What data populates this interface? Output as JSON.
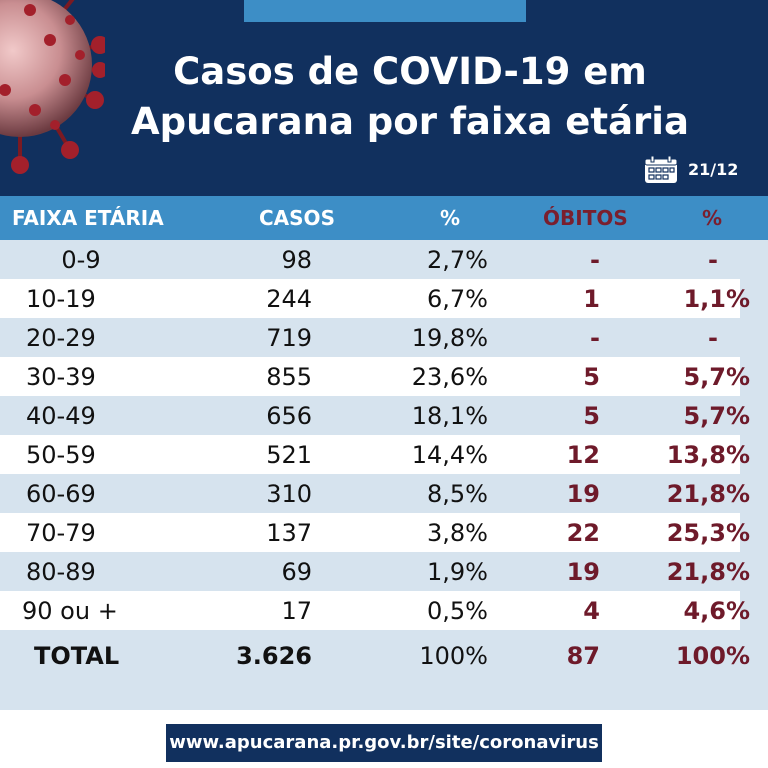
{
  "header": {
    "title_line1": "Casos de COVID-19 em",
    "title_line2": "Apucarana por faixa etária",
    "date": "21/12",
    "icons": [
      "virus-icon",
      "calendar-icon"
    ]
  },
  "table": {
    "headers": [
      "FAIXA ETÁRIA",
      "CASOS",
      "%",
      "ÓBITOS",
      "%"
    ],
    "rows": [
      {
        "faixa": "0-9",
        "casos": "98",
        "pct": "2,7%",
        "obitos": "-",
        "obpct": "-"
      },
      {
        "faixa": "10-19",
        "casos": "244",
        "pct": "6,7%",
        "obitos": "1",
        "obpct": "1,1%"
      },
      {
        "faixa": "20-29",
        "casos": "719",
        "pct": "19,8%",
        "obitos": "-",
        "obpct": "-"
      },
      {
        "faixa": "30-39",
        "casos": "855",
        "pct": "23,6%",
        "obitos": "5",
        "obpct": "5,7%"
      },
      {
        "faixa": "40-49",
        "casos": "656",
        "pct": "18,1%",
        "obitos": "5",
        "obpct": "5,7%"
      },
      {
        "faixa": "50-59",
        "casos": "521",
        "pct": "14,4%",
        "obitos": "12",
        "obpct": "13,8%"
      },
      {
        "faixa": "60-69",
        "casos": "310",
        "pct": "8,5%",
        "obitos": "19",
        "obpct": "21,8%"
      },
      {
        "faixa": "70-79",
        "casos": "137",
        "pct": "3,8%",
        "obitos": "22",
        "obpct": "25,3%"
      },
      {
        "faixa": "80-89",
        "casos": "69",
        "pct": "1,9%",
        "obitos": "19",
        "obpct": "21,8%"
      },
      {
        "faixa": "90 ou +",
        "casos": "17",
        "pct": "0,5%",
        "obitos": "4",
        "obpct": "4,6%"
      }
    ],
    "total": {
      "faixa": "TOTAL",
      "casos": "3.626",
      "pct": "100%",
      "obitos": "87",
      "obpct": "100%"
    }
  },
  "footer": {
    "url": "www.apucarana.pr.gov.br/site/coronavirus"
  },
  "colors": {
    "navy": "#11305e",
    "blue": "#3d8ec6",
    "light_band": "#d6e3ee",
    "maroon": "#6e1a2a"
  }
}
